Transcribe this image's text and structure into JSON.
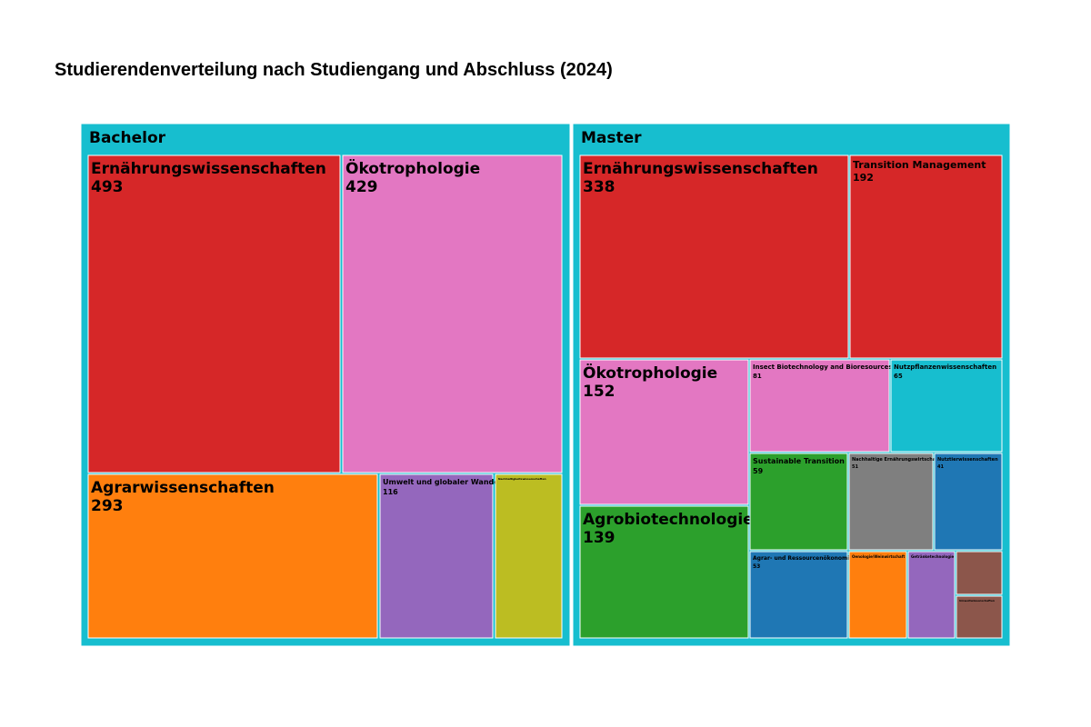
{
  "chart_data": {
    "type": "treemap",
    "title": "Studierendenverteilung nach Studiengang und Abschluss (2024)",
    "groups": [
      {
        "name": "Bachelor",
        "items": [
          {
            "name": "Ernährungswissenschaften",
            "value": 493,
            "color": "#d62728"
          },
          {
            "name": "Ökotrophologie",
            "value": 429,
            "color": "#e377c2"
          },
          {
            "name": "Agrarwissenschaften",
            "value": 293,
            "color": "#ff7f0e"
          },
          {
            "name": "Umwelt und globaler Wandel",
            "value": 116,
            "color": "#9467bd"
          },
          {
            "name": "Nachhaltigkeitswissenschaften",
            "value": 0,
            "color": "#bcbd22"
          }
        ]
      },
      {
        "name": "Master",
        "items": [
          {
            "name": "Ernährungswissenschaften",
            "value": 338,
            "color": "#d62728"
          },
          {
            "name": "Transition Management",
            "value": 192,
            "color": "#d62728"
          },
          {
            "name": "Ökotrophologie",
            "value": 152,
            "color": "#e377c2"
          },
          {
            "name": "Insect Biotechnology and Bioresources",
            "value": 81,
            "color": "#e377c2"
          },
          {
            "name": "Nutzpflanzenwissenschaften",
            "value": 65,
            "color": "#17becf"
          },
          {
            "name": "Agrobiotechnologie",
            "value": 139,
            "color": "#2ca02c"
          },
          {
            "name": "Sustainable Transition",
            "value": 59,
            "color": "#2ca02c"
          },
          {
            "name": "Nachhaltige Ernährungswirtschaft",
            "value": 51,
            "color": "#7f7f7f"
          },
          {
            "name": "Nutztierwissenschaften",
            "value": 41,
            "color": "#1f77b4"
          },
          {
            "name": "Agrar- und Ressourcenökonomie",
            "value": 53,
            "color": "#1f77b4"
          },
          {
            "name": "Oenologie/Weinwirtschaft",
            "value": 0,
            "color": "#ff7f0e"
          },
          {
            "name": "Getränketechnologie",
            "value": 0,
            "color": "#9467bd"
          },
          {
            "name": "",
            "value": 0,
            "color": "#8c564b"
          },
          {
            "name": "Umweltwissenschaften",
            "value": 0,
            "color": "#8c564b"
          }
        ]
      }
    ],
    "group_color": "#17becf"
  }
}
